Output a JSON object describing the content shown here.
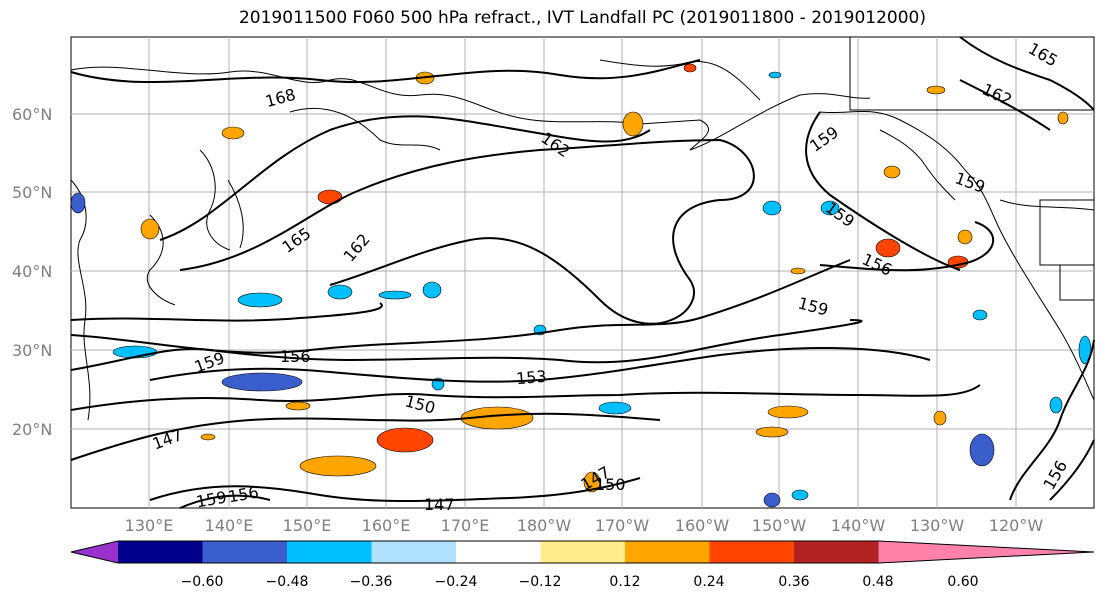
{
  "title": "2019011500 F060 500 hPa refract., IVT Landfall PC (2019011800 - 2019012000)",
  "lat_labels": [
    "60°N",
    "50°N",
    "40°N",
    "30°N",
    "20°N"
  ],
  "lon_labels": [
    "130°E",
    "140°E",
    "150°E",
    "160°E",
    "170°E",
    "180°W",
    "170°W",
    "160°W",
    "150°W",
    "140°W",
    "130°W",
    "120°W"
  ],
  "contour_labels": [
    "168",
    "165",
    "162",
    "162",
    "159",
    "159",
    "159",
    "156",
    "159",
    "156",
    "153",
    "150",
    "147",
    "147",
    "147",
    "150",
    "156",
    "165",
    "162",
    "159",
    "156",
    "159"
  ],
  "colorbar": {
    "ticks": [
      "−0.60",
      "−0.48",
      "−0.36",
      "−0.24",
      "−0.12",
      "0.12",
      "0.24",
      "0.36",
      "0.48",
      "0.60"
    ],
    "colors": [
      "#9932cc",
      "#00008b",
      "#3a5fcd",
      "#00bfff",
      "#b0e2ff",
      "#ffffff",
      "#ffec8b",
      "#ffa500",
      "#ff4500",
      "#b22222",
      "#ff82ab"
    ]
  }
}
